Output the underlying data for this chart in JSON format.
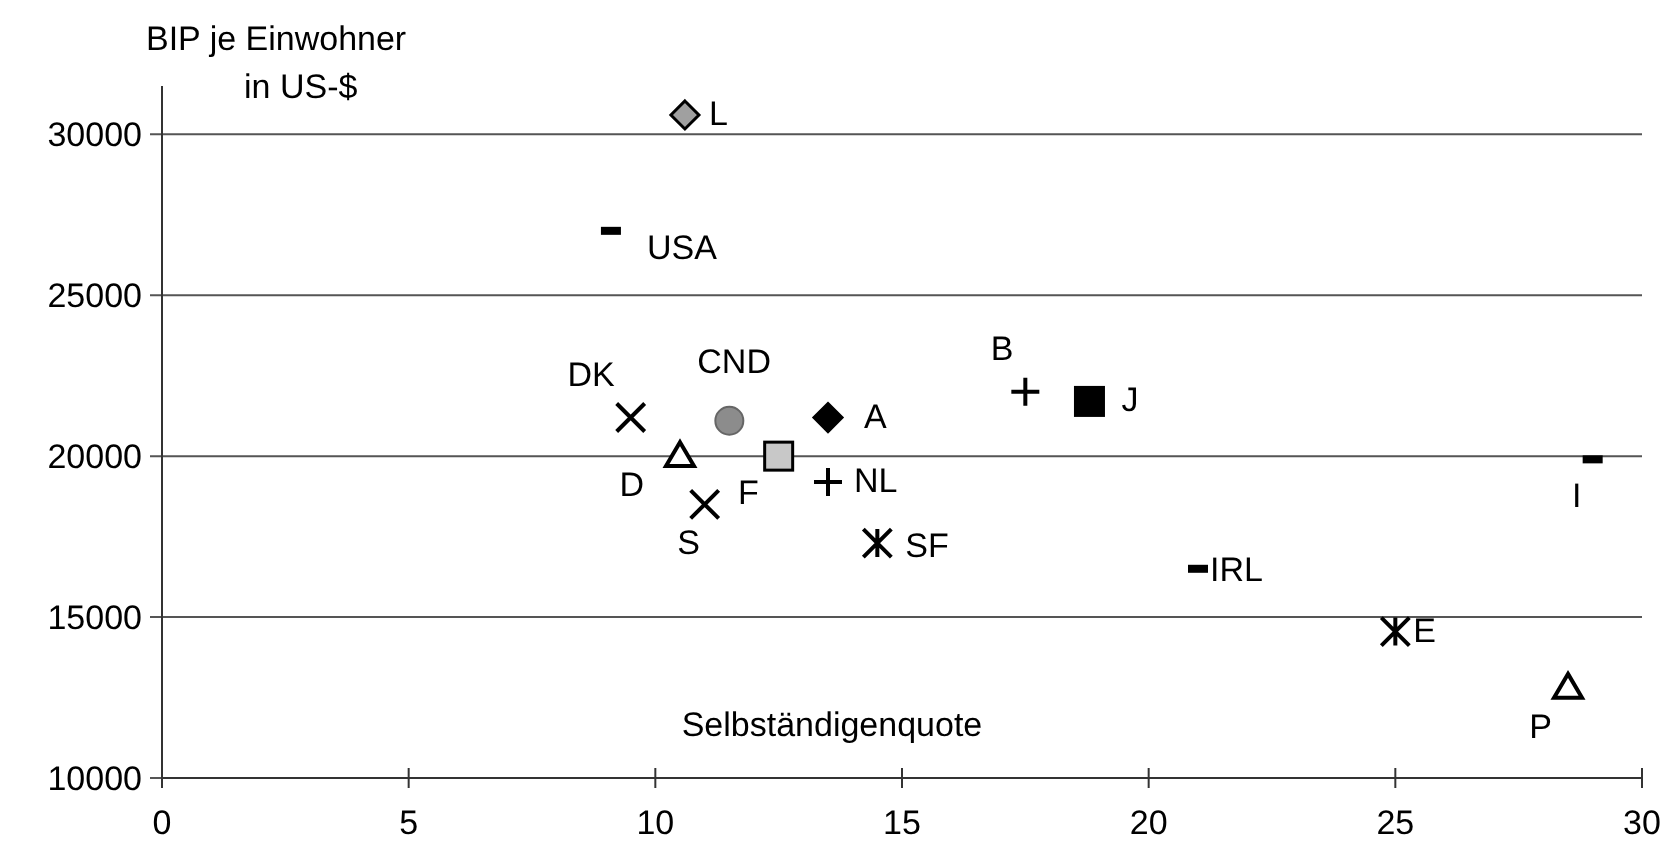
{
  "chart_data": {
    "type": "scatter",
    "xlabel": "Selbständigenquote",
    "ylabel": "BIP je Einwohner\nin US-$",
    "xlim": [
      0,
      30
    ],
    "xticks": [
      0,
      5,
      10,
      15,
      20,
      25,
      30
    ],
    "ylim": [
      10000,
      31500
    ],
    "yticks": [
      10000,
      15000,
      20000,
      25000,
      30000
    ],
    "grid": "y",
    "series": [
      {
        "name": "L",
        "color": "#a0a0a0",
        "marker": "diamond",
        "x": [
          10.6
        ],
        "values": [
          30600
        ]
      },
      {
        "name": "USA",
        "color": "#000000",
        "marker": "square",
        "x": [
          9.1
        ],
        "values": [
          27000
        ]
      },
      {
        "name": "DK",
        "color": "#000000",
        "marker": "cross",
        "x": [
          9.5
        ],
        "values": [
          21200
        ]
      },
      {
        "name": "CND",
        "color": "#8c8c8c",
        "marker": "circle",
        "x": [
          11.5
        ],
        "values": [
          21100
        ]
      },
      {
        "name": "A",
        "color": "#000000",
        "marker": "diamond",
        "x": [
          13.5
        ],
        "values": [
          21200
        ]
      },
      {
        "name": "B",
        "color": "#000000",
        "marker": "cross",
        "x": [
          17.5
        ],
        "values": [
          22000
        ]
      },
      {
        "name": "J",
        "color": "#000000",
        "marker": "square",
        "x": [
          18.8
        ],
        "values": [
          21700
        ]
      },
      {
        "name": "D",
        "color": "#000000",
        "marker": "triangle",
        "x": [
          10.5
        ],
        "values": [
          20000
        ]
      },
      {
        "name": "F",
        "color": "#c8c8c8",
        "marker": "square",
        "x": [
          12.5
        ],
        "values": [
          20000
        ]
      },
      {
        "name": "NL",
        "color": "#000000",
        "marker": "cross",
        "x": [
          13.5
        ],
        "values": [
          19200
        ]
      },
      {
        "name": "S",
        "color": "#000000",
        "marker": "cross",
        "x": [
          11.0
        ],
        "values": [
          18500
        ]
      },
      {
        "name": "SF",
        "color": "#000000",
        "marker": "cross",
        "x": [
          14.5
        ],
        "values": [
          17300
        ]
      },
      {
        "name": "I",
        "color": "#000000",
        "marker": "square",
        "x": [
          29.0
        ],
        "values": [
          19900
        ]
      },
      {
        "name": "IRL",
        "color": "#000000",
        "marker": "square",
        "x": [
          21.0
        ],
        "values": [
          16500
        ]
      },
      {
        "name": "E",
        "color": "#000000",
        "marker": "cross",
        "x": [
          25.0
        ],
        "values": [
          14550
        ]
      },
      {
        "name": "P",
        "color": "#000000",
        "marker": "triangle",
        "x": [
          28.5
        ],
        "values": [
          12800
        ]
      }
    ]
  }
}
